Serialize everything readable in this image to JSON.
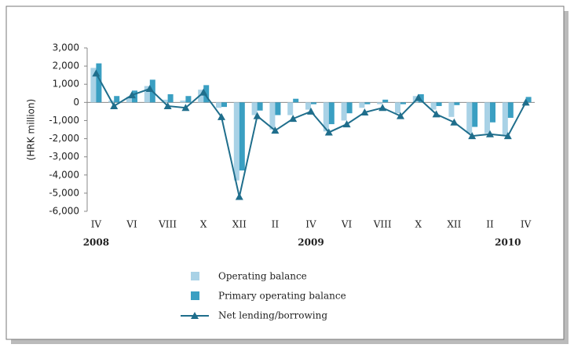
{
  "chart_data": {
    "type": "bar-line",
    "y_label": "(HRK million)",
    "categories": [
      "IV",
      null,
      "VI",
      null,
      "VIII",
      null,
      "X",
      null,
      "XII",
      null,
      "II",
      null,
      "IV",
      null,
      "VI",
      null,
      "VIII",
      null,
      "X",
      null,
      "XII",
      null,
      "II",
      null,
      "IV"
    ],
    "annotations": [
      "2008",
      "2009",
      "2010"
    ],
    "series": [
      {
        "name": "Operating balance",
        "color": "#a9d2e6",
        "kind": "bar",
        "values": [
          1900,
          100,
          300,
          900,
          150,
          100,
          700,
          -300,
          -4300,
          -700,
          -1500,
          -700,
          -400,
          -1600,
          -1000,
          -300,
          -100,
          -600,
          350,
          -400,
          -800,
          -1700,
          -1700,
          -1800,
          0
        ]
      },
      {
        "name": "Primary operating balance",
        "color": "#3a9fc2",
        "kind": "bar",
        "values": [
          2150,
          350,
          650,
          1250,
          450,
          350,
          950,
          -250,
          -3750,
          -450,
          -700,
          200,
          -100,
          -1200,
          -600,
          -100,
          150,
          -100,
          450,
          -200,
          -150,
          -1350,
          -1100,
          -850,
          300
        ]
      },
      {
        "name": "Net lending/borrowing",
        "color": "#1f6e8c",
        "kind": "line",
        "values": [
          1600,
          -200,
          400,
          750,
          -200,
          -300,
          550,
          -800,
          -5200,
          -750,
          -1550,
          -900,
          -500,
          -1650,
          -1200,
          -550,
          -300,
          -750,
          250,
          -650,
          -1100,
          -1850,
          -1750,
          -1850,
          0
        ]
      }
    ],
    "ylim": [
      -6000,
      3000
    ],
    "yticks": [
      {
        "value": 3000,
        "label": "3,000"
      },
      {
        "value": 2000,
        "label": "2,000"
      },
      {
        "value": 1000,
        "label": "1,000"
      },
      0,
      {
        "value": -1000,
        "label": "-1,000"
      },
      {
        "value": -2000,
        "label": "-2,000"
      },
      {
        "value": -3000,
        "label": "-3,000"
      },
      {
        "value": -4000,
        "label": "-4,000"
      },
      {
        "value": -5000,
        "label": "-5,000"
      },
      {
        "value": -6000,
        "label": "-6,000"
      }
    ]
  }
}
